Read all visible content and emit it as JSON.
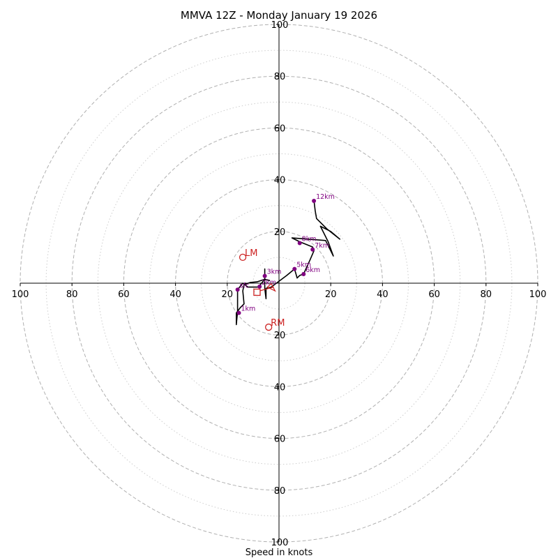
{
  "chart_data": {
    "type": "hodograph",
    "title": "MMVA 12Z - Monday January 19 2026",
    "xlabel": "Speed in knots",
    "units": "knots",
    "range": [
      -100,
      100
    ],
    "ring_labels": [
      "100",
      "80",
      "60",
      "40",
      "20",
      "20",
      "40",
      "60",
      "80",
      "100"
    ],
    "ring_values": [
      -100,
      -80,
      -60,
      -40,
      -20,
      20,
      40,
      60,
      80,
      100
    ],
    "y_ring_labels": [
      "100",
      "80",
      "60",
      "40",
      "20",
      "20",
      "40",
      "60",
      "80",
      "100"
    ],
    "y_ring_values": [
      100,
      80,
      60,
      40,
      20,
      -20,
      -40,
      -60,
      -80,
      -100
    ],
    "dashed_rings": [
      20,
      40,
      60,
      80,
      100
    ],
    "dotted_rings": [
      10,
      30,
      50,
      70,
      90
    ],
    "trace": [
      [
        -3.5,
        1.0
      ],
      [
        -5.5,
        1.5
      ],
      [
        -8.5,
        0.5
      ],
      [
        -11,
        0.3
      ],
      [
        -13.5,
        -0.5
      ],
      [
        -14,
        -3
      ],
      [
        -13.5,
        -8
      ],
      [
        -15,
        -9.5
      ],
      [
        -16.5,
        -11.5
      ],
      [
        -16.5,
        -16
      ],
      [
        -16,
        -11
      ],
      [
        -16,
        -2.5
      ],
      [
        -14,
        0
      ],
      [
        -12,
        -1.5
      ],
      [
        -8,
        -1.5
      ],
      [
        -5.5,
        1.5
      ],
      [
        -5.5,
        2.8
      ],
      [
        -5.5,
        5.5
      ],
      [
        -5.5,
        2
      ],
      [
        -5.5,
        -2
      ],
      [
        -5,
        -6
      ],
      [
        -5,
        -2
      ],
      [
        -3,
        -1.5
      ],
      [
        -1,
        0
      ],
      [
        3,
        3
      ],
      [
        6,
        5.5
      ],
      [
        7,
        2
      ],
      [
        8,
        3
      ],
      [
        9.5,
        3.5
      ],
      [
        12,
        9
      ],
      [
        13.5,
        12.5
      ],
      [
        13,
        14
      ],
      [
        8,
        16
      ],
      [
        5,
        17.5
      ],
      [
        18,
        16.5
      ],
      [
        21,
        10.5
      ],
      [
        19,
        16
      ],
      [
        16,
        22
      ],
      [
        20,
        20
      ],
      [
        23.5,
        17
      ],
      [
        18.5,
        21
      ],
      [
        14.5,
        25
      ],
      [
        14,
        28
      ],
      [
        13.5,
        32
      ]
    ],
    "height_markers": [
      {
        "label": "1km",
        "u": -15.5,
        "v": -11.5
      },
      {
        "label": "sfc",
        "u": -16,
        "v": -2.5
      },
      {
        "label": "2km",
        "u": -7.5,
        "v": -1.3
      },
      {
        "label": "3km",
        "u": -5.5,
        "v": 2.8
      },
      {
        "label": "5km",
        "u": 6,
        "v": 5.5
      },
      {
        "label": "6km",
        "u": 9.5,
        "v": 3.5
      },
      {
        "label": "7km",
        "u": 13,
        "v": 13
      },
      {
        "label": "8km",
        "u": 8,
        "v": 15.5
      },
      {
        "label": "12km",
        "u": 13.5,
        "v": 31.8
      }
    ],
    "storm_motions": [
      {
        "label": "LM",
        "u": -14,
        "v": 10
      },
      {
        "label": "RM",
        "u": -4,
        "v": -17
      }
    ],
    "mean_wind_marker": {
      "u": -8.5,
      "v": -3.5
    },
    "colors": {
      "trace": "#000000",
      "height_marker": "#800080",
      "storm_motion": "#cc2222",
      "grid": "#b0b0b0",
      "axis": "#000000"
    }
  }
}
